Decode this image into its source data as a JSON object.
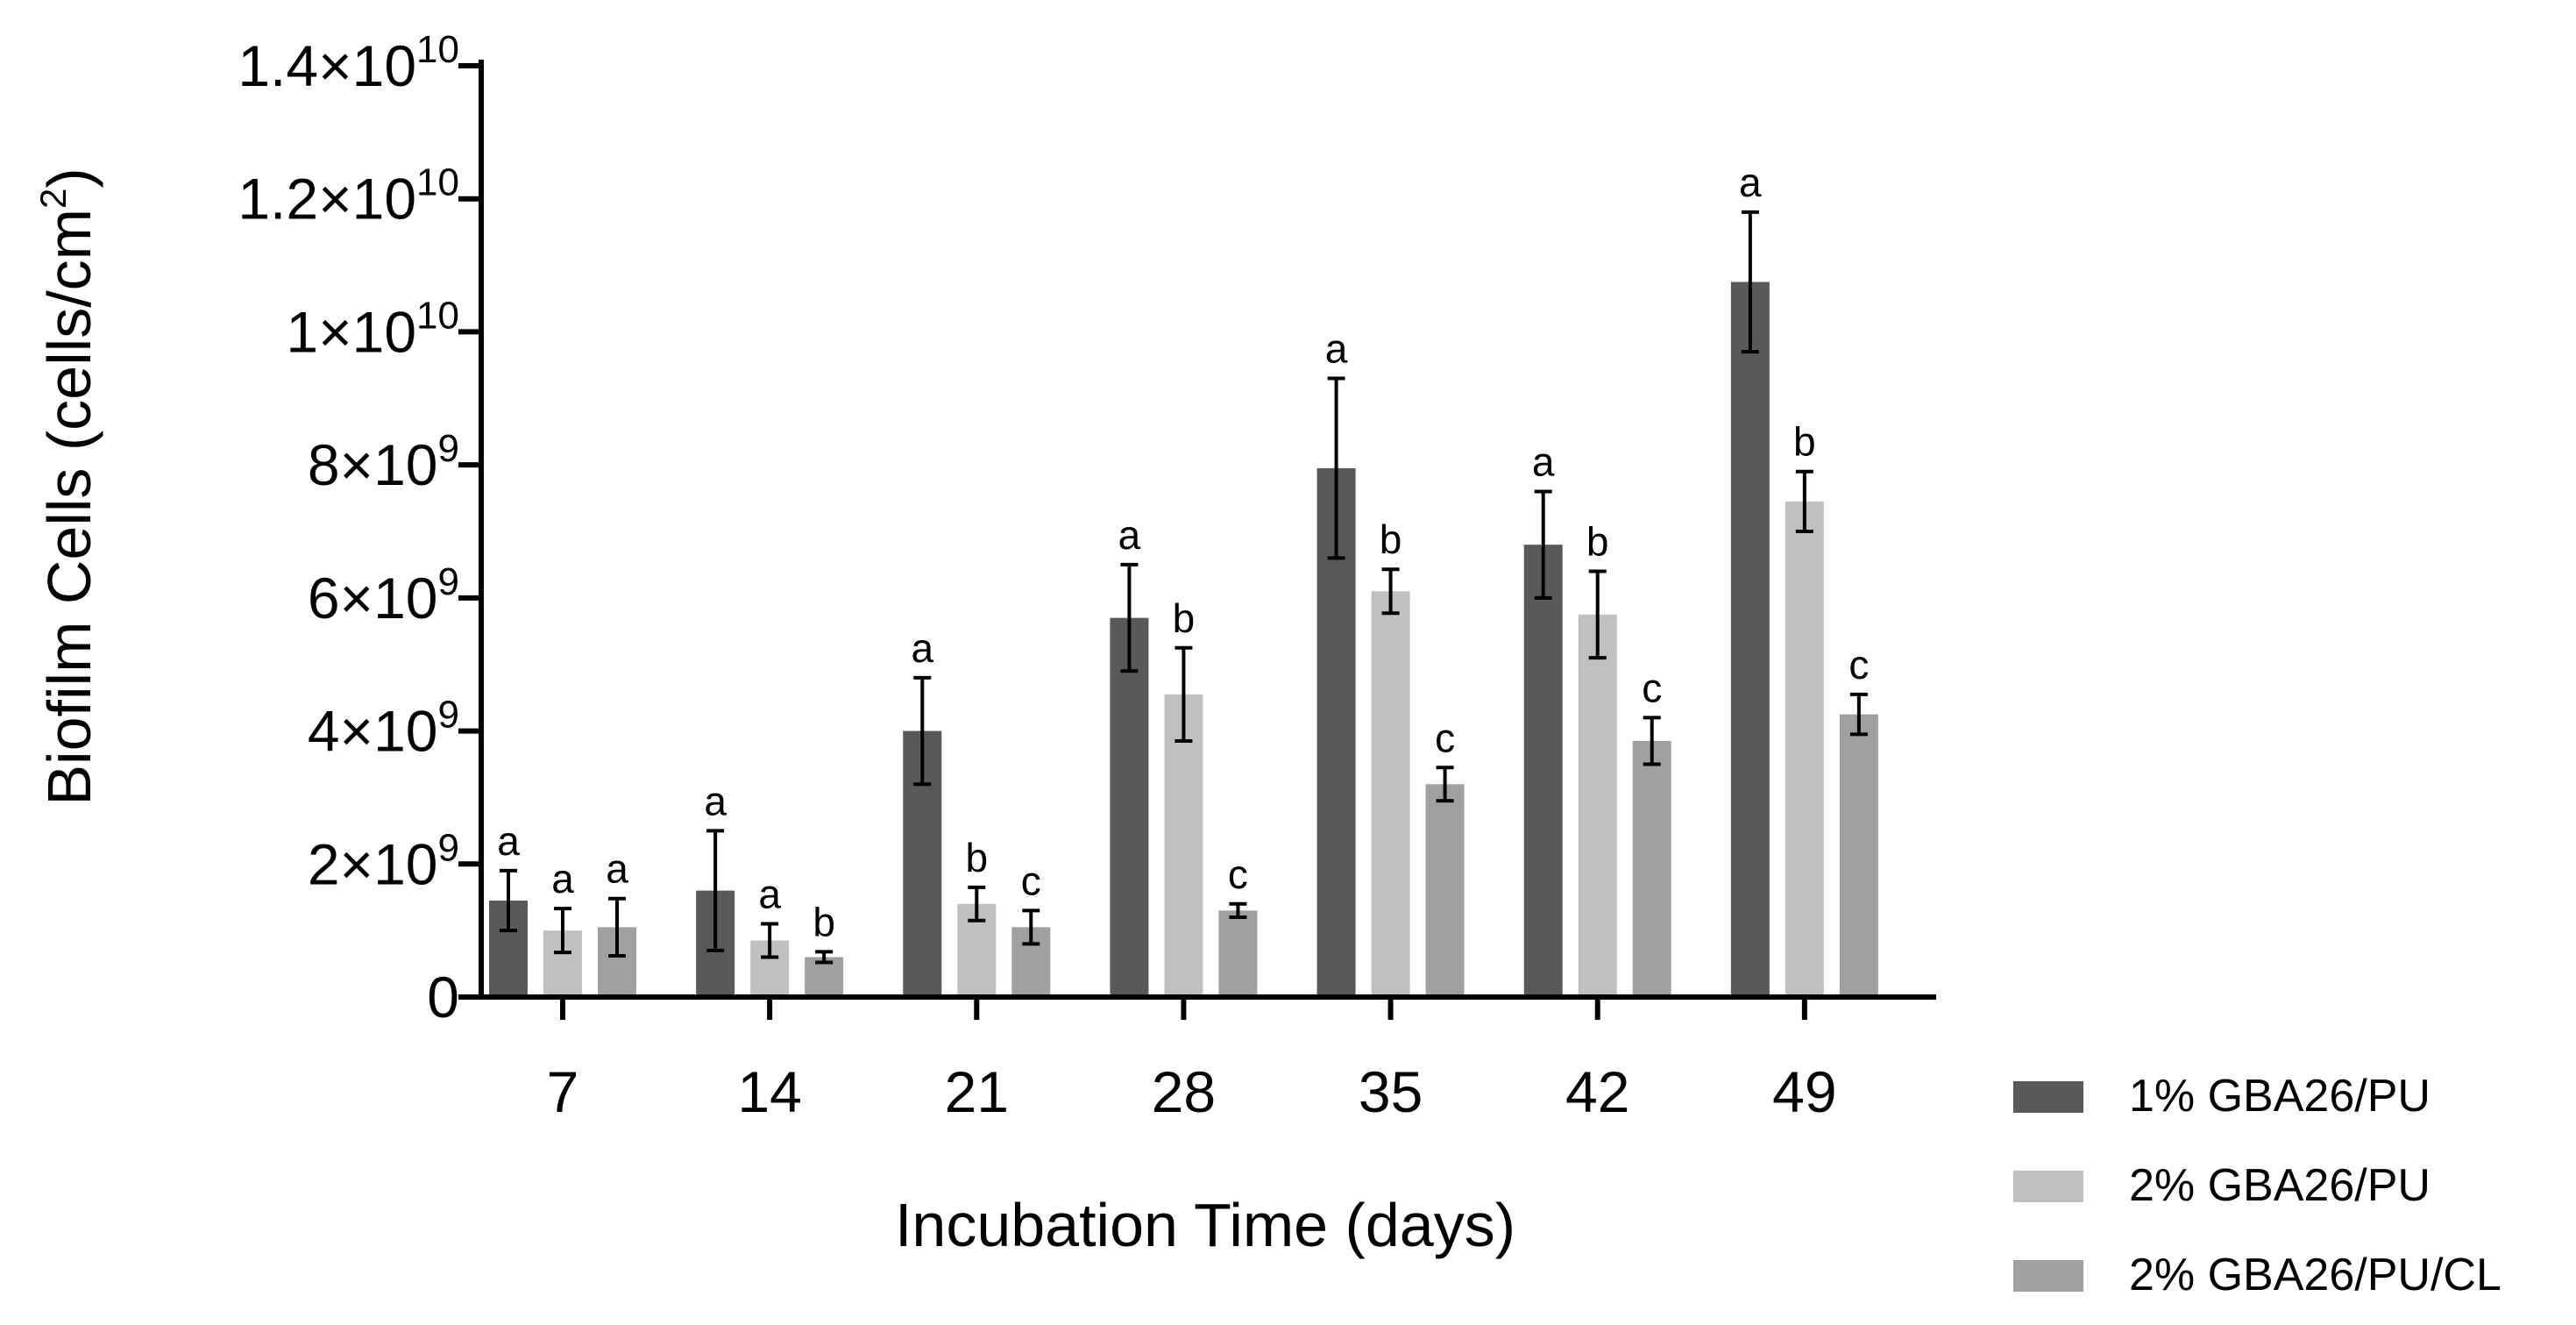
{
  "chart_data": {
    "type": "bar",
    "title": "",
    "xlabel": "Incubation Time (days)",
    "ylabel": "Biofilm Cells (cells/cm",
    "ylabel_superscript": "2",
    "ylabel_close": ")",
    "ylim": [
      0,
      14000000000
    ],
    "yticks": [
      {
        "value": 0,
        "mantissa": "0",
        "exponent": ""
      },
      {
        "value": 2000000000,
        "mantissa": "2×10",
        "exponent": "9"
      },
      {
        "value": 4000000000,
        "mantissa": "4×10",
        "exponent": "9"
      },
      {
        "value": 6000000000,
        "mantissa": "6×10",
        "exponent": "9"
      },
      {
        "value": 8000000000,
        "mantissa": "8×10",
        "exponent": "9"
      },
      {
        "value": 10000000000,
        "mantissa": "1×10",
        "exponent": "10"
      },
      {
        "value": 12000000000,
        "mantissa": "1.2×10",
        "exponent": "10"
      },
      {
        "value": 14000000000,
        "mantissa": "1.4×10",
        "exponent": "10"
      }
    ],
    "categories": [
      "7",
      "14",
      "21",
      "28",
      "35",
      "42",
      "49"
    ],
    "legend_position": "bottom-right",
    "series": [
      {
        "name": "1% GBA26/PU",
        "color": "#595959",
        "values": [
          1450000000,
          1600000000,
          4000000000,
          5700000000,
          7950000000,
          6800000000,
          10750000000
        ],
        "errors": [
          450000000,
          900000000,
          800000000,
          800000000,
          1350000000,
          800000000,
          1050000000
        ],
        "letters": [
          "a",
          "a",
          "a",
          "a",
          "a",
          "a",
          "a"
        ]
      },
      {
        "name": "2% GBA26/PU",
        "color": "#c0c0c0",
        "values": [
          1000000000,
          850000000,
          1400000000,
          4550000000,
          6100000000,
          5750000000,
          7450000000
        ],
        "errors": [
          330000000,
          250000000,
          250000000,
          700000000,
          330000000,
          650000000,
          450000000
        ],
        "letters": [
          "a",
          "a",
          "b",
          "b",
          "b",
          "b",
          "b"
        ]
      },
      {
        "name": "2% GBA26/PU/CL",
        "color": "#a0a0a0",
        "values": [
          1050000000,
          600000000,
          1050000000,
          1300000000,
          3200000000,
          3850000000,
          4250000000
        ],
        "errors": [
          430000000,
          80000000,
          250000000,
          100000000,
          250000000,
          350000000,
          300000000
        ],
        "letters": [
          "a",
          "b",
          "c",
          "c",
          "c",
          "c",
          "c"
        ]
      }
    ]
  }
}
